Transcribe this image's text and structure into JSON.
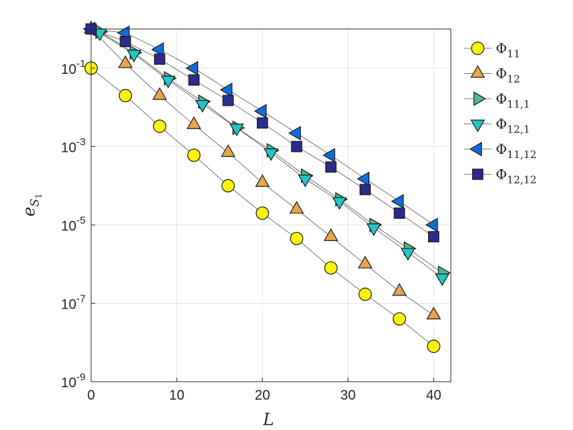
{
  "chart_data": {
    "type": "scatter",
    "xlabel": "L",
    "ylabel": {
      "base": "e",
      "sub": "S",
      "subsub": "1"
    },
    "xlim": [
      0,
      42
    ],
    "ylim": [
      1e-09,
      1
    ],
    "yscale": "log",
    "grid": true,
    "legend_position": "outside-right",
    "x_ticks": [
      0,
      10,
      20,
      30,
      40
    ],
    "y_ticks": [
      {
        "value": 0.1,
        "base": "10",
        "exp": "-1"
      },
      {
        "value": 0.001,
        "base": "10",
        "exp": "-3"
      },
      {
        "value": 1e-05,
        "base": "10",
        "exp": "-5"
      },
      {
        "value": 1e-07,
        "base": "10",
        "exp": "-7"
      },
      {
        "value": 1e-09,
        "base": "10",
        "exp": "-9"
      }
    ],
    "series": [
      {
        "name": "Φ",
        "sub": "11",
        "marker": "circle",
        "color": "#FFF30D",
        "x": [
          0,
          4,
          8,
          12,
          16,
          20,
          24,
          28,
          32,
          36,
          40
        ],
        "y": [
          0.1,
          0.02,
          0.0033,
          0.0006,
          0.0001,
          2e-05,
          4.5e-06,
          8e-07,
          1.7e-07,
          4e-08,
          8e-09
        ]
      },
      {
        "name": "Φ",
        "sub": "12",
        "marker": "triangle-up",
        "color": "#E6A74A",
        "x": [
          0,
          4,
          8,
          12,
          16,
          20,
          24,
          28,
          32,
          36,
          40
        ],
        "y": [
          1.0,
          0.13,
          0.02,
          0.0036,
          0.0007,
          0.00012,
          2.5e-05,
          5e-06,
          1e-06,
          2e-07,
          5e-08
        ]
      },
      {
        "name": "Φ",
        "sub": "11,1",
        "marker": "triangle-right",
        "color": "#50B88E",
        "x": [
          1,
          5,
          9,
          13,
          17,
          21,
          25,
          29,
          33,
          37,
          41
        ],
        "y": [
          0.85,
          0.25,
          0.055,
          0.014,
          0.003,
          0.0008,
          0.00018,
          4.5e-05,
          1e-05,
          2.5e-06,
          6e-07
        ]
      },
      {
        "name": "Φ",
        "sub": "12,1",
        "marker": "triangle-down",
        "color": "#24C6C8",
        "x": [
          1,
          5,
          9,
          13,
          17,
          21,
          25,
          29,
          33,
          37,
          41
        ],
        "y": [
          0.8,
          0.23,
          0.05,
          0.012,
          0.003,
          0.0007,
          0.00015,
          4e-05,
          8.5e-06,
          2e-06,
          4.5e-07
        ]
      },
      {
        "name": "Φ",
        "sub": "11,12",
        "marker": "triangle-left",
        "color": "#0F6EDC",
        "x": [
          0,
          4,
          8,
          12,
          16,
          20,
          24,
          28,
          32,
          36,
          40
        ],
        "y": [
          1.0,
          0.8,
          0.3,
          0.1,
          0.028,
          0.008,
          0.0022,
          0.0006,
          0.00015,
          4e-05,
          1e-05
        ]
      },
      {
        "name": "Φ",
        "sub": "12,12",
        "marker": "square",
        "color": "#2B2C8C",
        "x": [
          0,
          4,
          8,
          12,
          16,
          20,
          24,
          28,
          32,
          36,
          40
        ],
        "y": [
          1.0,
          0.48,
          0.17,
          0.05,
          0.015,
          0.004,
          0.001,
          0.0003,
          8e-05,
          2e-05,
          5e-06
        ]
      }
    ]
  }
}
